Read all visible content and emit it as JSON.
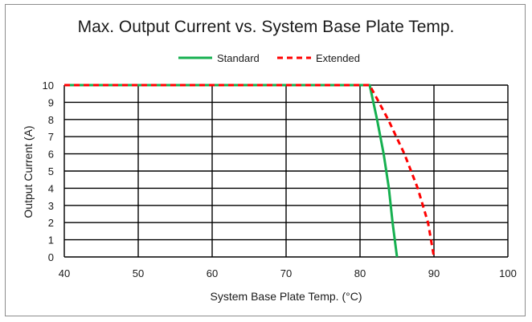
{
  "chart_data": {
    "type": "line",
    "title": "Max. Output Current vs. System Base Plate Temp.",
    "xlabel": "System Base Plate Temp. (°C)",
    "ylabel": "Output Current (A)",
    "xlim": [
      40,
      100
    ],
    "ylim": [
      0,
      10
    ],
    "xticks": [
      40,
      50,
      60,
      70,
      80,
      90,
      100
    ],
    "yticks": [
      0,
      1,
      2,
      3,
      4,
      5,
      6,
      7,
      8,
      9,
      10
    ],
    "grid": true,
    "legend": "top-center",
    "series": [
      {
        "name": "Standard",
        "color": "#16b050",
        "style": "solid",
        "x": [
          40,
          81.3,
          82.3,
          83.2,
          83.9,
          84.4,
          85.0
        ],
        "y": [
          10,
          10,
          8,
          6,
          4,
          2,
          0
        ]
      },
      {
        "name": "Extended",
        "color": "#ff0000",
        "style": "dashed",
        "x": [
          40,
          81.3,
          83.8,
          86.0,
          87.8,
          89.2,
          90.0
        ],
        "y": [
          10,
          10,
          8,
          6,
          4,
          2,
          0
        ]
      }
    ]
  }
}
